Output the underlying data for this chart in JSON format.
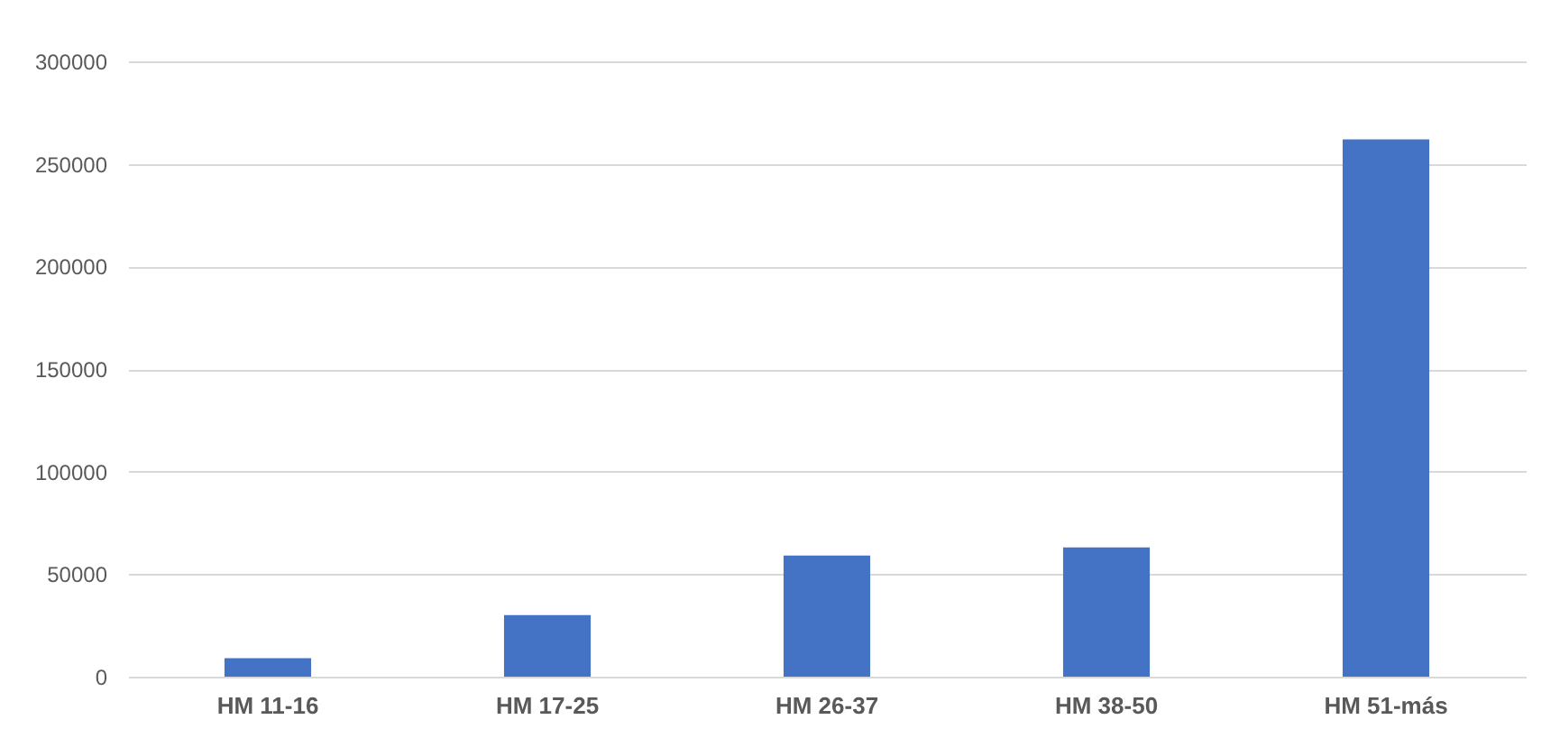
{
  "chart_data": {
    "type": "bar",
    "categories": [
      "HM 11-16",
      "HM 17-25",
      "HM 26-37",
      "HM 38-50",
      "HM 51-más"
    ],
    "series": [
      {
        "color": "#4472c4",
        "values": [
          9000,
          30000,
          59000,
          63000,
          262000
        ]
      }
    ],
    "ylim": [
      0,
      300000
    ],
    "yticks": [
      0,
      50000,
      100000,
      150000,
      200000,
      250000,
      300000
    ],
    "grid": "y"
  }
}
